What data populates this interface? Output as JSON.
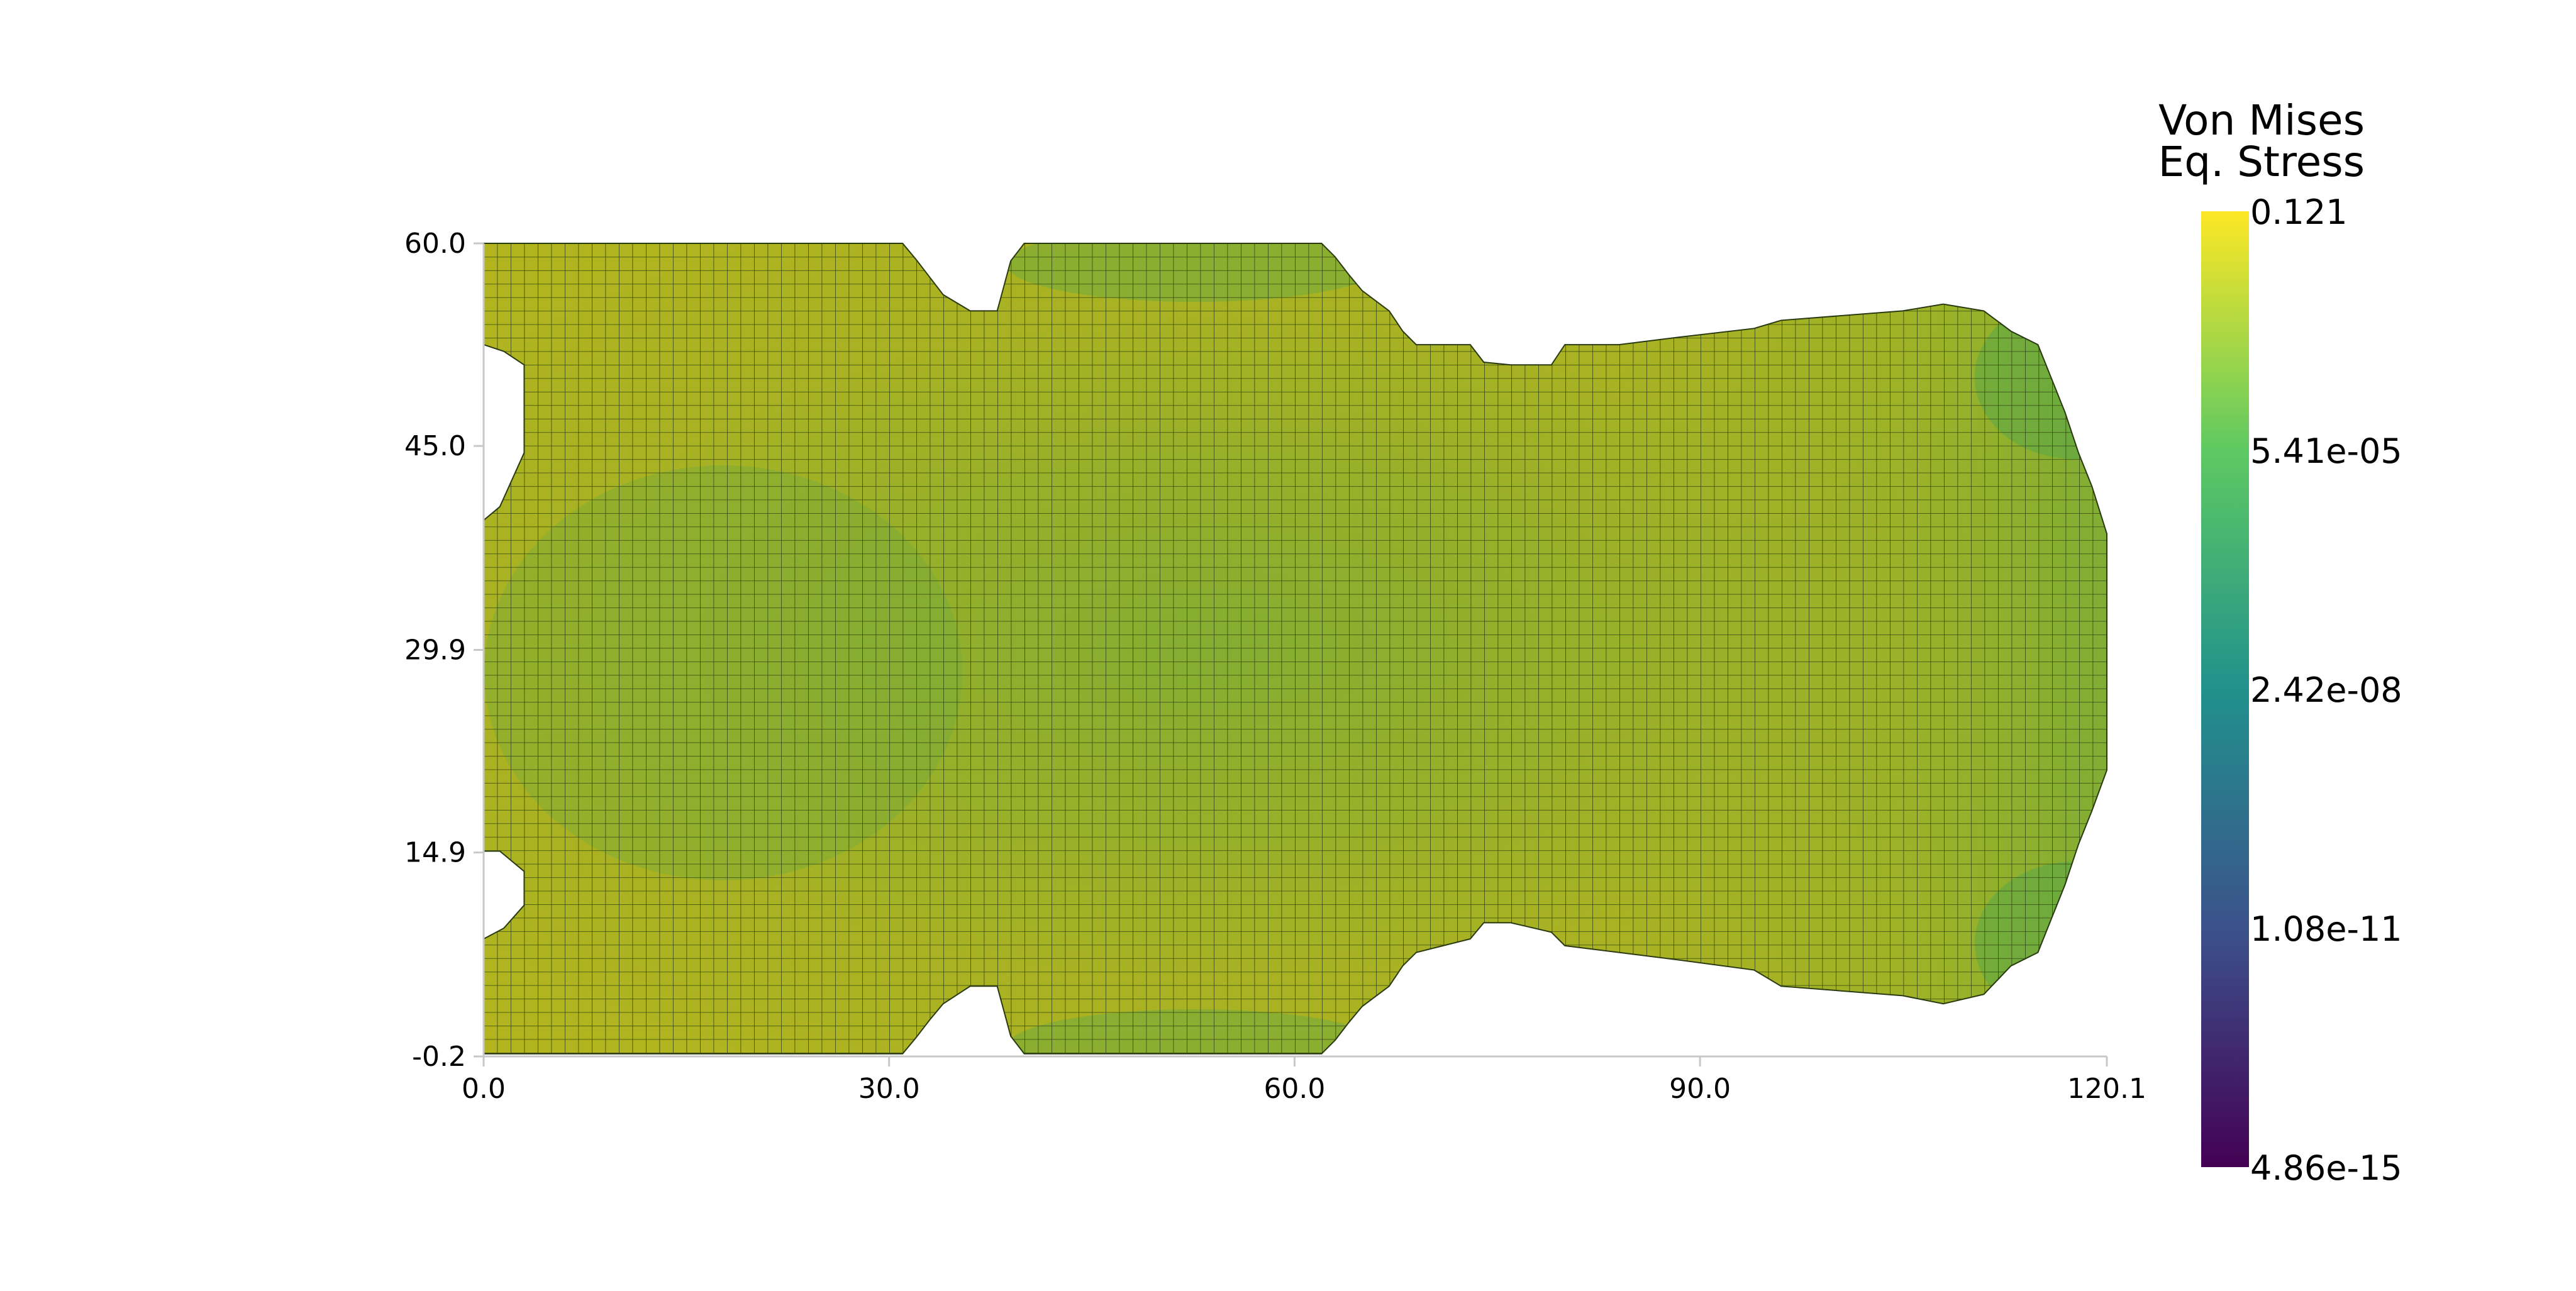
{
  "chart_data": {
    "type": "heatmap",
    "title": "",
    "xlabel": "",
    "ylabel": "",
    "xlim": [
      0.0,
      120.1
    ],
    "ylim": [
      -0.2,
      60.0
    ],
    "x_ticks": [
      "0.0",
      "30.0",
      "60.0",
      "90.0",
      "120.1"
    ],
    "y_ticks": [
      "60.0",
      "45.0",
      "29.9",
      "14.9",
      "-0.2"
    ],
    "grid": false,
    "mesh_element_size": 1.0,
    "colorbar": {
      "title_lines": [
        "Von Mises",
        "Eq. Stress"
      ],
      "labels": [
        "0.121",
        "5.41e-05",
        "2.42e-08",
        "1.08e-11",
        "4.86e-15"
      ],
      "colormap": [
        "#440154",
        "#3b528b",
        "#21918c",
        "#5ec962",
        "#fde725"
      ],
      "scale": "log",
      "placement": "right"
    },
    "mesh_colors": {
      "yellow_olive": "#b3b41e",
      "green": "#6fae3b",
      "edge": "#2a3a10"
    },
    "shape_profile": {
      "description_units": "data",
      "top_boundary": [
        [
          0,
          60.0
        ],
        [
          31,
          60.0
        ],
        [
          32,
          58.8
        ],
        [
          33,
          57.5
        ],
        [
          34,
          56.2
        ],
        [
          36,
          55.0
        ],
        [
          38,
          55.0
        ],
        [
          39,
          58.7
        ],
        [
          40,
          60.0
        ],
        [
          62,
          60.0
        ],
        [
          63,
          59.0
        ],
        [
          64,
          57.7
        ],
        [
          65,
          56.5
        ],
        [
          67,
          55.0
        ],
        [
          68,
          53.5
        ],
        [
          69,
          52.5
        ],
        [
          73,
          52.5
        ],
        [
          74,
          51.2
        ],
        [
          76,
          51.0
        ],
        [
          79,
          51.0
        ],
        [
          80,
          52.5
        ],
        [
          84,
          52.5
        ],
        [
          88,
          53.0
        ],
        [
          94,
          53.7
        ],
        [
          96,
          54.3
        ],
        [
          105,
          55.0
        ],
        [
          108,
          55.5
        ],
        [
          111,
          55.0
        ],
        [
          113,
          53.5
        ],
        [
          115,
          52.5
        ],
        [
          116,
          50.0
        ],
        [
          117,
          47.5
        ],
        [
          118,
          44.5
        ],
        [
          119,
          42.0
        ],
        [
          120.1,
          38.5
        ]
      ],
      "bottom_boundary": [
        [
          0,
          0.0
        ],
        [
          31,
          0.0
        ],
        [
          32,
          1.2
        ],
        [
          33,
          2.5
        ],
        [
          34,
          3.7
        ],
        [
          36,
          5.0
        ],
        [
          38,
          5.0
        ],
        [
          39,
          1.3
        ],
        [
          40,
          0.0
        ],
        [
          62,
          0.0
        ],
        [
          63,
          1.0
        ],
        [
          64,
          2.3
        ],
        [
          65,
          3.5
        ],
        [
          67,
          5.0
        ],
        [
          68,
          6.5
        ],
        [
          69,
          7.5
        ],
        [
          73,
          8.5
        ],
        [
          74,
          9.7
        ],
        [
          76,
          9.7
        ],
        [
          79,
          9.0
        ],
        [
          80,
          8.0
        ],
        [
          84,
          7.5
        ],
        [
          88,
          7.0
        ],
        [
          94,
          6.2
        ],
        [
          96,
          5.0
        ],
        [
          105,
          4.3
        ],
        [
          108,
          3.7
        ],
        [
          111,
          4.4
        ],
        [
          113,
          6.5
        ],
        [
          115,
          7.5
        ],
        [
          116,
          10.0
        ],
        [
          117,
          12.5
        ],
        [
          118,
          15.5
        ],
        [
          119,
          18.0
        ],
        [
          120.1,
          21.0
        ]
      ],
      "left_notches": [
        {
          "y_top": 52.5,
          "y_bottom": 47.5,
          "depth": 3.0
        },
        {
          "y_top": 15.0,
          "y_bottom": 8.5,
          "depth": 3.0
        }
      ]
    }
  }
}
